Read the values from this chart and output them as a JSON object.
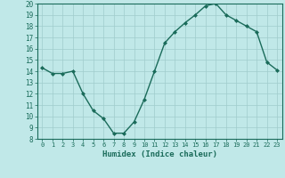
{
  "x": [
    0,
    1,
    2,
    3,
    4,
    5,
    6,
    7,
    8,
    9,
    10,
    11,
    12,
    13,
    14,
    15,
    16,
    17,
    18,
    19,
    20,
    21,
    22,
    23
  ],
  "y": [
    14.3,
    13.8,
    13.8,
    14.0,
    12.0,
    10.5,
    9.8,
    8.5,
    8.5,
    9.5,
    11.5,
    14.0,
    16.5,
    17.5,
    18.3,
    19.0,
    19.8,
    20.0,
    19.0,
    18.5,
    18.0,
    17.5,
    14.8,
    14.1
  ],
  "xlabel": "Humidex (Indice chaleur)",
  "ylim": [
    8,
    20
  ],
  "xlim": [
    -0.5,
    23.5
  ],
  "yticks": [
    8,
    9,
    10,
    11,
    12,
    13,
    14,
    15,
    16,
    17,
    18,
    19,
    20
  ],
  "xticks": [
    0,
    1,
    2,
    3,
    4,
    5,
    6,
    7,
    8,
    9,
    10,
    11,
    12,
    13,
    14,
    15,
    16,
    17,
    18,
    19,
    20,
    21,
    22,
    23
  ],
  "line_color": "#1a6b5a",
  "marker_color": "#1a6b5a",
  "bg_color": "#c0e8e8",
  "grid_color": "#a0cccc"
}
